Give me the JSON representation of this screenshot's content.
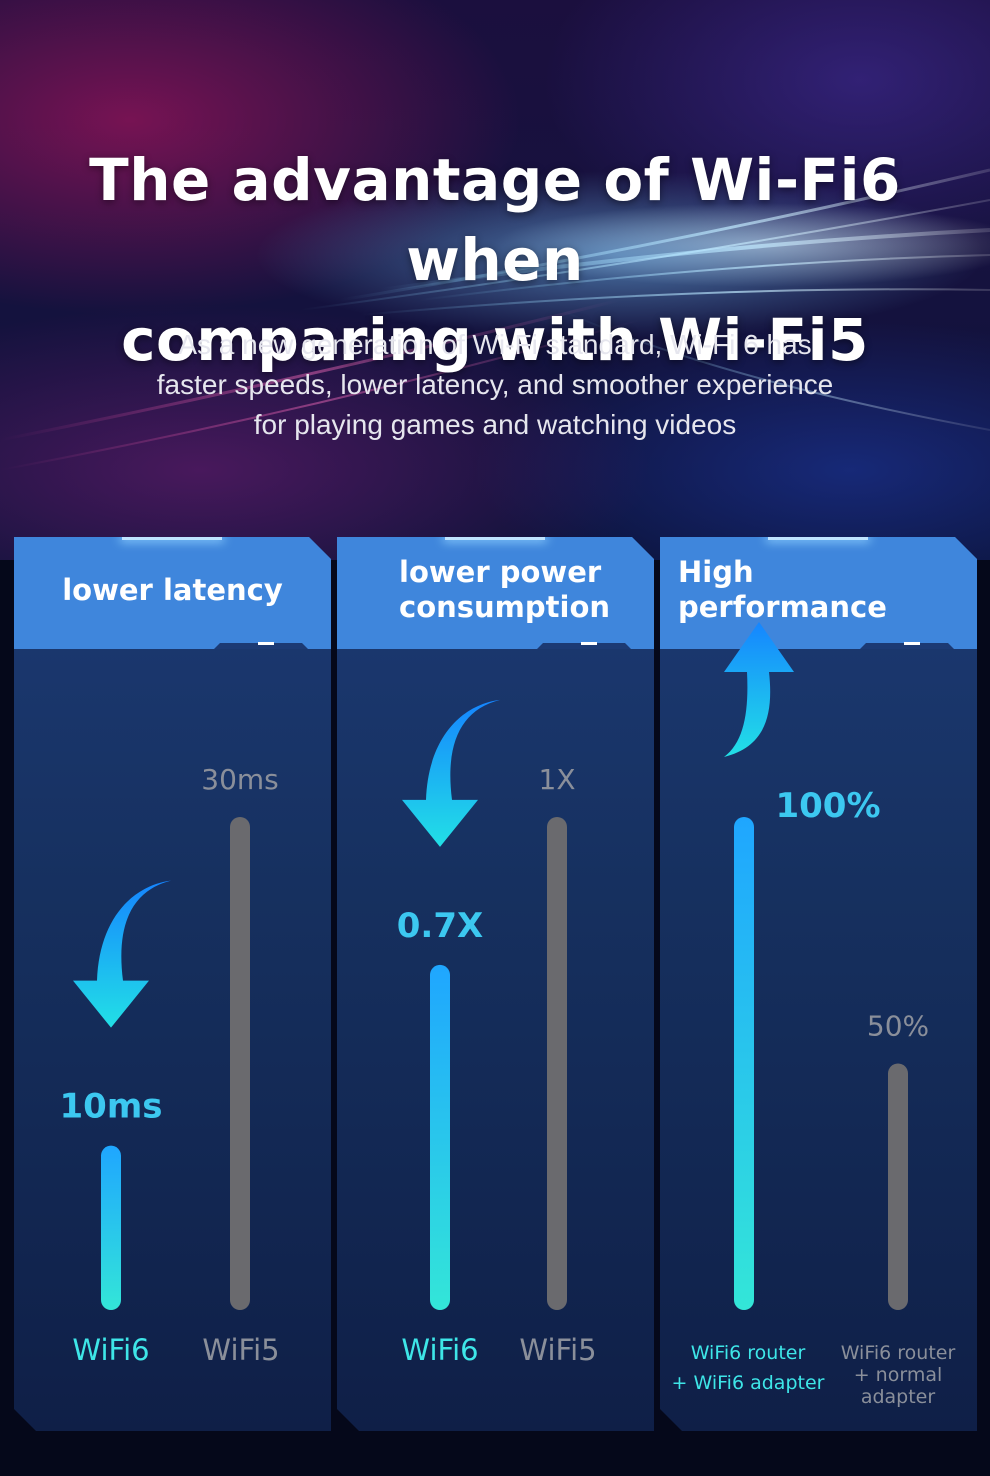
{
  "header": {
    "title_line1": "The advantage of Wi-Fi6 when",
    "title_line2": "comparing with Wi-Fi5",
    "subtitle_line1": "As a new generation of Wi-Fi standard, Wi-Fi 6 has",
    "subtitle_line2": "faster speeds, lower latency, and smoother experience",
    "subtitle_line3": "for playing games and watching videos"
  },
  "colors": {
    "header_blue": "#3f86dc",
    "wifi6_cyan": "#3ee6e8",
    "wifi5_grey": "#8a8f9a",
    "arrow_blue": "#1fa6ff"
  },
  "chart_data": [
    {
      "type": "bar",
      "title_lines": [
        "lower latency"
      ],
      "categories": [
        "WiFi6",
        "WiFi5"
      ],
      "values": [
        10,
        30
      ],
      "value_labels": [
        "10ms",
        "30ms"
      ],
      "ylim": [
        0,
        30
      ],
      "highlight": 0,
      "arrow": "down"
    },
    {
      "type": "bar",
      "title_lines": [
        "lower power",
        "consumption"
      ],
      "categories": [
        "WiFi6",
        "WiFi5"
      ],
      "values": [
        0.7,
        1
      ],
      "value_labels": [
        "0.7X",
        "1X"
      ],
      "ylim": [
        0,
        1
      ],
      "highlight": 0,
      "arrow": "down"
    },
    {
      "type": "bar",
      "title_lines": [
        "High performance"
      ],
      "categories": [
        "WiFi6 router + WiFi6 adapter",
        "WiFi6 router + normal adapter"
      ],
      "category_lines": [
        [
          "WiFi6 router",
          "+ WiFi6 adapter"
        ],
        [
          "WiFi6 router",
          "+ normal",
          "adapter"
        ]
      ],
      "values": [
        100,
        50
      ],
      "value_labels": [
        "100%",
        "50%"
      ],
      "ylim": [
        0,
        100
      ],
      "highlight": 0,
      "arrow": "up"
    }
  ]
}
